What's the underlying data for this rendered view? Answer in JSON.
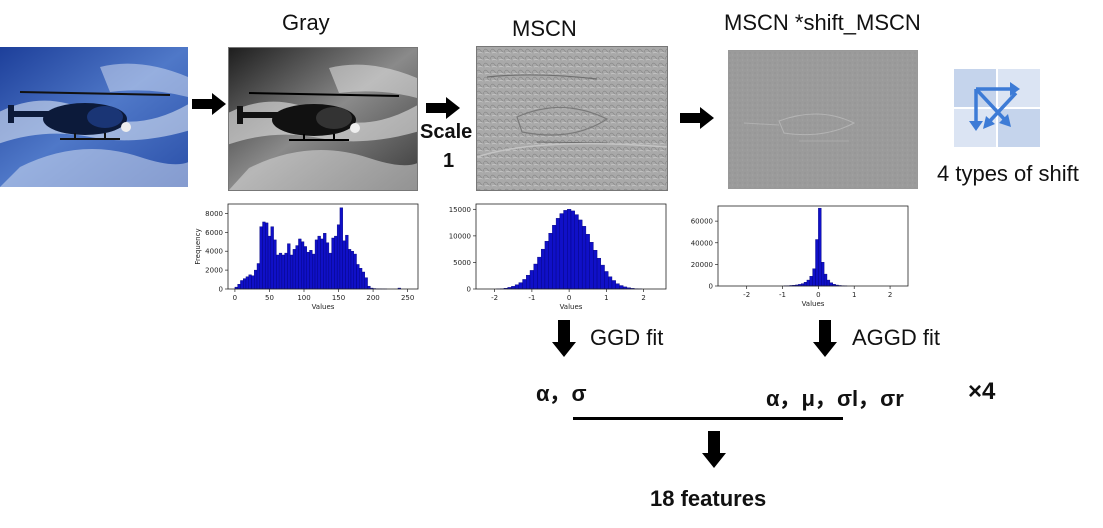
{
  "labels": {
    "gray": "Gray",
    "mscn": "MSCN",
    "mscn_shift": "MSCN *shift_MSCN",
    "scale": "Scale",
    "scale_num": "1",
    "shift_types": "4 types of shift",
    "ggd_fit": "GGD fit",
    "aggd_fit": "AGGD fit",
    "ggd_params": "α，σ",
    "aggd_params": "α，μ，σl，σr",
    "times4": "×4",
    "features": "18 features"
  },
  "colors": {
    "bar": "#1010c8",
    "bar_edge": "#00007a",
    "arrow": "#000000",
    "shift_tile": "#c5d4ec",
    "shift_arrow": "#3d7bd6"
  },
  "chart_data": [
    {
      "type": "bar",
      "id": "gray-histogram",
      "xlabel": "Values",
      "ylabel": "Frequency",
      "xlim": [
        -10,
        265
      ],
      "ylim": [
        0,
        9000
      ],
      "xticks": [
        0,
        50,
        100,
        150,
        200,
        250
      ],
      "yticks": [
        0,
        2000,
        4000,
        6000,
        8000
      ],
      "bin_width": 4,
      "x": [
        2,
        6,
        10,
        14,
        18,
        22,
        26,
        30,
        34,
        38,
        42,
        46,
        50,
        54,
        58,
        62,
        66,
        70,
        74,
        78,
        82,
        86,
        90,
        94,
        98,
        102,
        106,
        110,
        114,
        118,
        122,
        126,
        130,
        134,
        138,
        142,
        146,
        150,
        154,
        158,
        162,
        166,
        170,
        174,
        178,
        182,
        186,
        190,
        194,
        198,
        202,
        206,
        210,
        214,
        218,
        222,
        226,
        230,
        234,
        238,
        242,
        246,
        250,
        254
      ],
      "values": [
        200,
        500,
        900,
        1100,
        1300,
        1500,
        1400,
        2000,
        2700,
        6600,
        7100,
        7000,
        5600,
        6600,
        5200,
        3600,
        3800,
        3600,
        3800,
        4800,
        3600,
        4200,
        4600,
        5300,
        5000,
        4500,
        3900,
        4100,
        3700,
        5200,
        5600,
        5300,
        5900,
        4900,
        3800,
        5400,
        5600,
        6800,
        8600,
        5100,
        5700,
        4200,
        4000,
        3700,
        2600,
        2200,
        1800,
        1200,
        300,
        100,
        50,
        30,
        20,
        10,
        5,
        0,
        0,
        0,
        0,
        100,
        0,
        0,
        0,
        0
      ]
    },
    {
      "type": "bar",
      "id": "mscn-histogram",
      "xlabel": "Values",
      "ylabel": "",
      "xlim": [
        -2.5,
        2.6
      ],
      "ylim": [
        0,
        16000
      ],
      "xticks": [
        -2,
        -1,
        0,
        1,
        2
      ],
      "yticks": [
        0,
        5000,
        10000,
        15000
      ],
      "bin_width": 0.1,
      "x": [
        -1.9,
        -1.8,
        -1.7,
        -1.6,
        -1.5,
        -1.4,
        -1.3,
        -1.2,
        -1.1,
        -1.0,
        -0.9,
        -0.8,
        -0.7,
        -0.6,
        -0.5,
        -0.4,
        -0.3,
        -0.2,
        -0.1,
        0.0,
        0.1,
        0.2,
        0.3,
        0.4,
        0.5,
        0.6,
        0.7,
        0.8,
        0.9,
        1.0,
        1.1,
        1.2,
        1.3,
        1.4,
        1.5,
        1.6,
        1.7,
        1.8,
        1.9
      ],
      "values": [
        20,
        60,
        150,
        300,
        500,
        800,
        1200,
        1800,
        2600,
        3500,
        4700,
        6000,
        7500,
        9000,
        10500,
        12000,
        13300,
        14200,
        14800,
        15000,
        14700,
        14000,
        13000,
        11800,
        10300,
        8800,
        7300,
        5800,
        4500,
        3300,
        2300,
        1600,
        1000,
        650,
        400,
        230,
        120,
        60,
        30
      ]
    },
    {
      "type": "bar",
      "id": "shift-histogram",
      "xlabel": "Values",
      "ylabel": "",
      "xlim": [
        -2.8,
        2.5
      ],
      "ylim": [
        0,
        74000
      ],
      "xticks": [
        -2,
        -1,
        0,
        1,
        2
      ],
      "yticks": [
        0,
        20000,
        40000,
        60000
      ],
      "bin_width": 0.08,
      "x": [
        -0.92,
        -0.84,
        -0.76,
        -0.68,
        -0.6,
        -0.52,
        -0.44,
        -0.36,
        -0.28,
        -0.2,
        -0.12,
        -0.04,
        0.04,
        0.12,
        0.2,
        0.28,
        0.36,
        0.44,
        0.52,
        0.6,
        0.68,
        0.76
      ],
      "values": [
        200,
        300,
        500,
        700,
        1000,
        1500,
        2200,
        3500,
        5500,
        9000,
        16000,
        43000,
        72000,
        22000,
        11000,
        5500,
        3000,
        1600,
        900,
        500,
        300,
        150
      ]
    }
  ]
}
